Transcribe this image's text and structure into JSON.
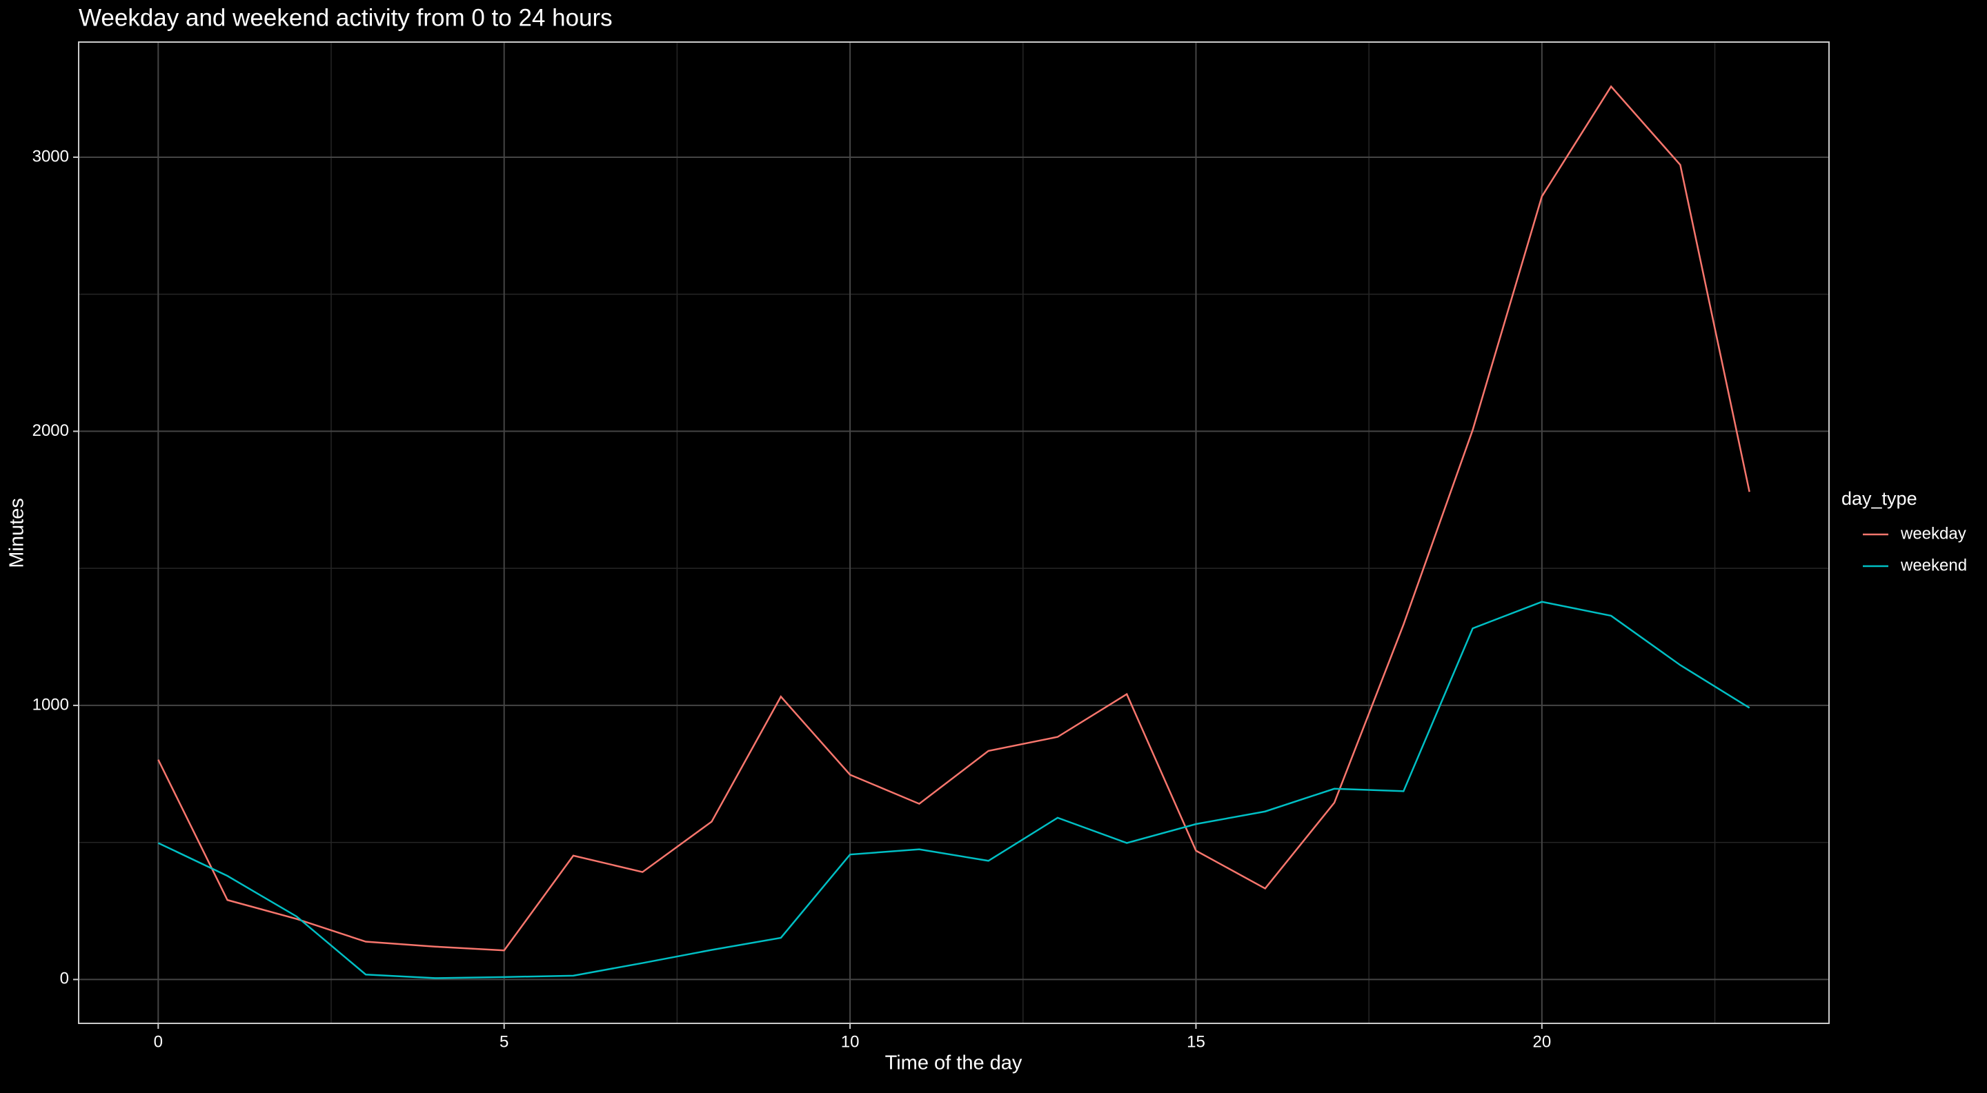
{
  "chart_data": {
    "type": "line",
    "title": "Weekday and weekend activity from 0 to 24 hours",
    "x_label": "Time of the day",
    "y_label": "Minutes",
    "legend_title": "day_type",
    "legend_position": "right",
    "x": [
      0,
      1,
      2,
      3,
      4,
      5,
      6,
      7,
      8,
      9,
      10,
      11,
      12,
      13,
      14,
      15,
      16,
      17,
      18,
      19,
      20,
      21,
      22,
      23
    ],
    "series": [
      {
        "name": "weekday",
        "color": "#f8766d",
        "values": [
          802,
          290,
          221,
          138,
          120,
          106,
          452,
          392,
          576,
          1032,
          747,
          641,
          834,
          885,
          1041,
          470,
          332,
          645,
          1295,
          2005,
          2857,
          3258,
          2972,
          1779
        ]
      },
      {
        "name": "weekend",
        "color": "#00bfc4",
        "values": [
          498,
          378,
          230,
          18,
          5,
          9,
          14,
          60,
          108,
          152,
          456,
          475,
          433,
          590,
          498,
          567,
          613,
          696,
          687,
          1281,
          1378,
          1327,
          1147,
          991
        ]
      }
    ],
    "xlim": [
      -1.15,
      24.15
    ],
    "xticks": [
      0,
      5,
      10,
      15,
      20
    ],
    "minor_xticks": [
      2.5,
      7.5,
      12.5,
      17.5,
      22.5
    ],
    "ylim": [
      -160,
      3420
    ],
    "yticks": [
      0,
      1000,
      2000,
      3000
    ],
    "minor_yticks": [
      500,
      1500,
      2500
    ],
    "grid": true
  }
}
